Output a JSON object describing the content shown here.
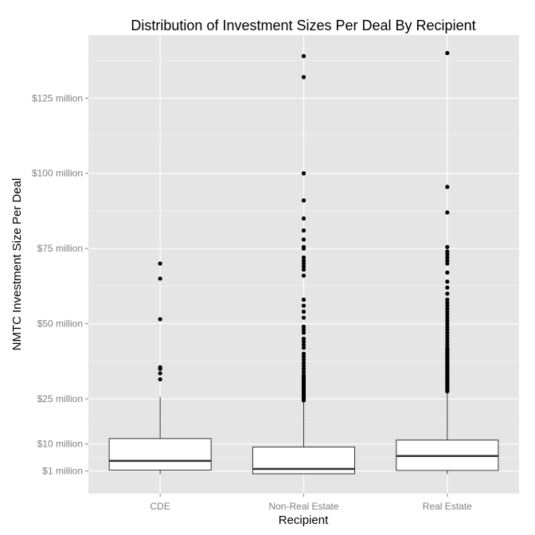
{
  "chart_data": {
    "type": "box",
    "title": "Distribution of Investment Sizes Per Deal By Recipient",
    "xlabel": "Recipient",
    "ylabel": "NMTC Investment Size Per Deal",
    "ylim": [
      -6.5,
      146
    ],
    "y_ticks": [
      {
        "value": 1,
        "label": "$1 million"
      },
      {
        "value": 10,
        "label": "$10 million"
      },
      {
        "value": 25,
        "label": "$25 million"
      },
      {
        "value": 50,
        "label": "$50 million"
      },
      {
        "value": 75,
        "label": "$75 million"
      },
      {
        "value": 100,
        "label": "$100 million"
      },
      {
        "value": 125,
        "label": "$125 million"
      }
    ],
    "y_minor_ticks": [
      5.5,
      17.5,
      37.5,
      62.5,
      87.5,
      112.5,
      137.5
    ],
    "grid": true,
    "categories": [
      "CDE",
      "Non-Real Estate",
      "Real Estate"
    ],
    "boxes": [
      {
        "category": "CDE",
        "whisker_low": 0,
        "q1": 1.3,
        "median": 4.4,
        "q3": 11.8,
        "whisker_high": 25.7,
        "outliers": [
          31.5,
          33.5,
          35,
          35.5,
          51.5,
          65,
          70
        ]
      },
      {
        "category": "Non-Real Estate",
        "whisker_low": 0,
        "q1": 0.1,
        "median": 1.7,
        "q3": 9.0,
        "whisker_high": 24,
        "outliers": [
          24.5,
          25,
          25.5,
          26,
          26.5,
          27,
          27.5,
          28,
          28.5,
          29,
          29.5,
          30,
          30.5,
          31,
          31.5,
          32,
          32.5,
          33,
          34,
          35,
          36,
          37,
          38,
          39,
          40,
          42,
          43,
          44,
          45,
          47,
          48,
          49,
          52,
          54,
          56,
          58,
          66,
          68,
          69,
          70,
          71,
          72,
          75,
          75.5,
          78,
          81,
          85,
          91,
          100,
          132,
          139
        ]
      },
      {
        "category": "Real Estate",
        "whisker_low": 0,
        "q1": 1.2,
        "median": 6.0,
        "q3": 11.3,
        "whisker_high": 27,
        "outliers": [
          27.5,
          28,
          28.5,
          29,
          29.5,
          30,
          30.5,
          31,
          31.5,
          32,
          32.5,
          33,
          33.5,
          34,
          34.5,
          35,
          35.5,
          36,
          36.5,
          37,
          37.5,
          38,
          38.5,
          39,
          39.5,
          40,
          40.5,
          41,
          41.5,
          42,
          43,
          44,
          45,
          46,
          47,
          48,
          49,
          50,
          51,
          52,
          53,
          54,
          55,
          56,
          57,
          58,
          60,
          62,
          64,
          67,
          70,
          71,
          72,
          73,
          74,
          75.5,
          87,
          95.5,
          140
        ]
      }
    ],
    "colors": {
      "panel_background": "#e5e5e5",
      "major_grid": "#ffffff",
      "minor_grid": "#f2f2f2",
      "box_fill": "#ffffff",
      "box_stroke": "#333333",
      "median": "#333333",
      "outlier": "#000000",
      "tick_label": "#7f7f7f"
    }
  }
}
